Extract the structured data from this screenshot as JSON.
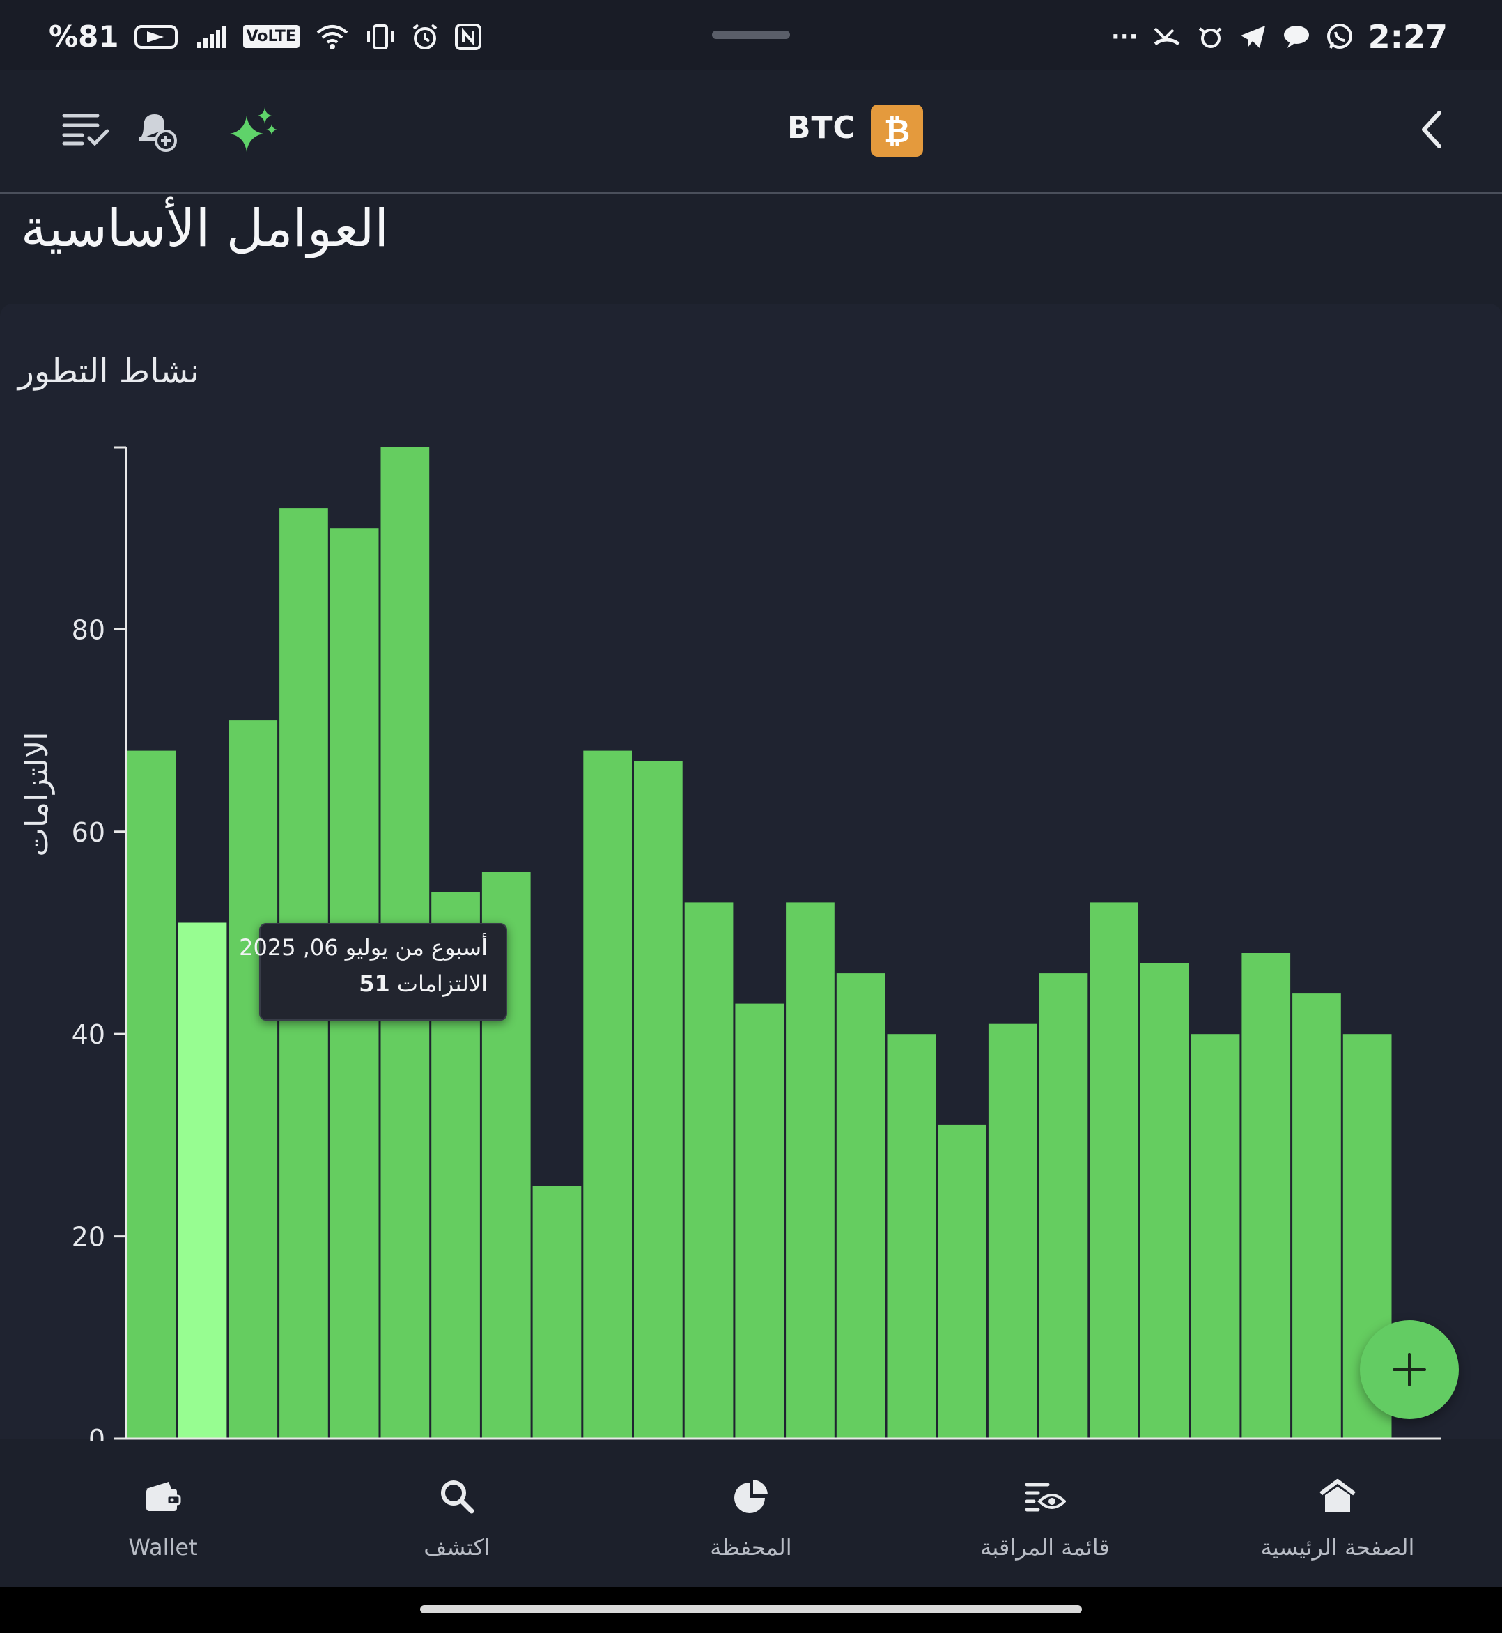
{
  "status_bar": {
    "battery": "%81",
    "volte": "VoLTE",
    "time": "2:27",
    "overflow": "···"
  },
  "header": {
    "title": "BTC",
    "coin_symbol": "₿",
    "icons": [
      "checklist-icon",
      "bell-plus-icon",
      "sparkles-icon",
      "chevron-left-icon"
    ]
  },
  "section_title": "العوامل الأساسية",
  "card": {
    "title": "نشاط التطور"
  },
  "chart_data": {
    "type": "bar",
    "ylabel": "الالتزامات",
    "ylim": [
      0,
      98
    ],
    "yticks": [
      0,
      20,
      40,
      60,
      80
    ],
    "values": [
      68,
      51,
      71,
      92,
      90,
      98,
      54,
      56,
      25,
      68,
      67,
      53,
      43,
      53,
      46,
      40,
      31,
      41,
      46,
      53,
      47,
      40,
      48,
      44,
      40
    ],
    "highlight_index": 1,
    "colors": {
      "bar": "#65cd60",
      "highlight": "#97fd91",
      "axis": "#e8e8e8"
    }
  },
  "tooltip": {
    "date": "أسبوع من يوليو 06, 2025",
    "value": "51",
    "label": "الالتزامات"
  },
  "bottom_nav": {
    "items": [
      {
        "label": "Wallet",
        "icon": "wallet-icon"
      },
      {
        "label": "اكتشف",
        "icon": "search-icon"
      },
      {
        "label": "المحفظة",
        "icon": "pie-chart-icon"
      },
      {
        "label": "قائمة المراقبة",
        "icon": "watchlist-eye-icon"
      },
      {
        "label": "الصفحة الرئيسية",
        "icon": "home-icon"
      }
    ]
  }
}
